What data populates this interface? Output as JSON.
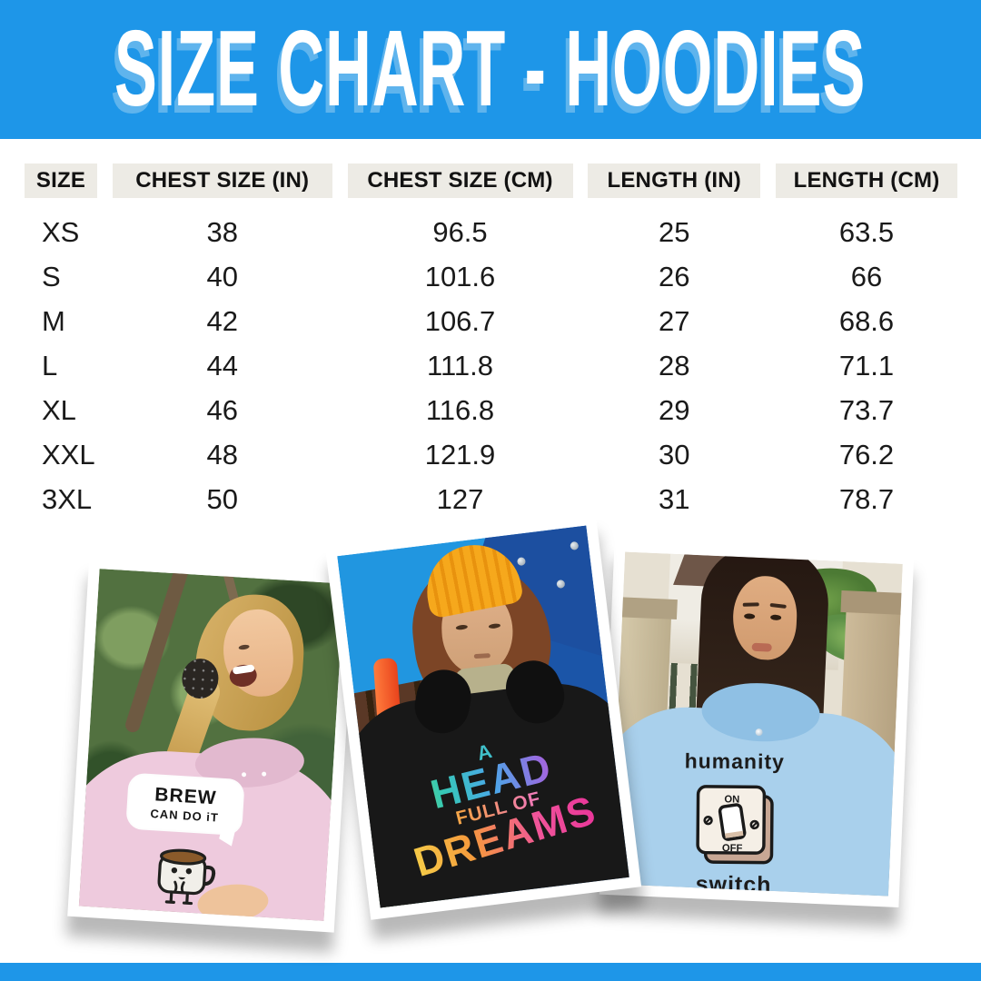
{
  "banner": {
    "title": "SIZE CHART - HOODIES",
    "bg_color": "#1e96e8",
    "text_color": "#ffffff"
  },
  "table": {
    "header_bg": "#edebe5",
    "columns": [
      "SIZE",
      "CHEST SIZE (IN)",
      "CHEST SIZE (CM)",
      "LENGTH (IN)",
      "LENGTH (CM)"
    ],
    "rows": [
      [
        "XS",
        "38",
        "96.5",
        "25",
        "63.5"
      ],
      [
        "S",
        "40",
        "101.6",
        "26",
        "66"
      ],
      [
        "M",
        "42",
        "106.7",
        "27",
        "68.6"
      ],
      [
        "L",
        "44",
        "111.8",
        "28",
        "71.1"
      ],
      [
        "XL",
        "46",
        "116.8",
        "29",
        "73.7"
      ],
      [
        "XXL",
        "48",
        "121.9",
        "30",
        "76.2"
      ],
      [
        "3XL",
        "50",
        "127",
        "31",
        "78.7"
      ]
    ]
  },
  "photos": [
    {
      "description": "laughing woman in pink hoodie in forest",
      "hoodie_color": "#eecadd",
      "design": {
        "line1": "BREW",
        "line2": "CAN DO iT"
      }
    },
    {
      "description": "person in orange beanie and black hoodie at blue playground",
      "hoodie_color": "#181818",
      "design": {
        "line1": "A",
        "line2": "HEAD",
        "line3": "FULL OF",
        "line4": "DREAMS"
      }
    },
    {
      "description": "woman with long dark hair in light blue hoodie by pillars",
      "hoodie_color": "#a9d0ec",
      "design": {
        "line1": "humanity",
        "switch_on": "ON",
        "switch_off": "OFF",
        "line2": "switch"
      }
    }
  ],
  "footer": {
    "bg_color": "#1e96e8"
  }
}
